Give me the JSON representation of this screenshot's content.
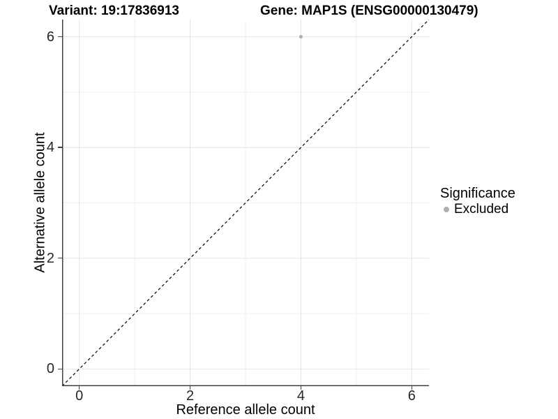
{
  "page": {
    "background": "#ffffff"
  },
  "titles": {
    "variant": "Variant: 19:17836913",
    "gene": "Gene: MAP1S (ENSG00000130479)"
  },
  "axes": {
    "x": {
      "title": "Reference allele count",
      "tick_labels": [
        "0",
        "2",
        "4",
        "6"
      ]
    },
    "y": {
      "title": "Alternative allele count",
      "tick_labels": [
        "0",
        "2",
        "4",
        "6"
      ]
    }
  },
  "legend": {
    "title": "Significance",
    "items": [
      {
        "label": "Excluded",
        "marker": "circle",
        "color": "#b0b0b0"
      }
    ]
  },
  "colors": {
    "background": "#ffffff",
    "grid_major": "#e4e4e4",
    "grid_minor": "#efefef",
    "axis_line": "#404040",
    "tick_text": "#262626",
    "identity_line": "#000000",
    "point": "#b0b0b0"
  },
  "chart_data": {
    "type": "scatter",
    "title": "Variant: 19:17836913    Gene: MAP1S (ENSG00000130479)",
    "xlabel": "Reference allele count",
    "ylabel": "Alternative allele count",
    "xlim": [
      -0.31,
      6.31
    ],
    "ylim": [
      -0.31,
      6.31
    ],
    "x_ticks": [
      0,
      2,
      4,
      6
    ],
    "y_ticks": [
      0,
      2,
      4,
      6
    ],
    "x_minor_ticks": [
      1,
      3,
      5
    ],
    "y_minor_ticks": [
      1,
      3,
      5
    ],
    "grid": "major-and-minor",
    "series": [
      {
        "name": "Excluded",
        "color": "#b0b0b0",
        "points": [
          {
            "x": 4,
            "y": 6
          }
        ]
      }
    ],
    "annotations": [
      {
        "type": "line",
        "note": "identity line y = x",
        "style": "dashed",
        "color": "#000000",
        "x1": -0.31,
        "y1": -0.31,
        "x2": 6.31,
        "y2": 6.31
      }
    ],
    "legend": {
      "title": "Significance",
      "position": "right",
      "entries": [
        "Excluded"
      ]
    }
  }
}
